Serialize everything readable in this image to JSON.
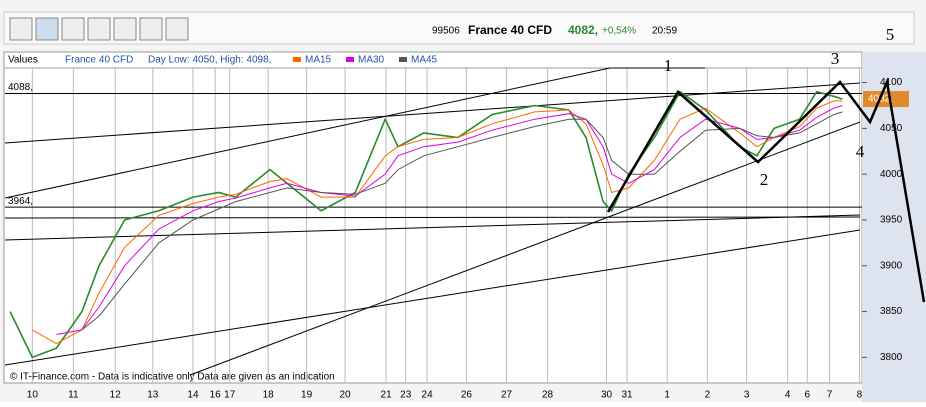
{
  "toolbar": {
    "quote_id": "99506",
    "instrument": "France 40 CFD",
    "last": "4082,",
    "change": "+0,54%",
    "time": "20:59"
  },
  "legend": {
    "heading": "Values",
    "instrument": "France 40 CFD",
    "day_range": "Day Low: 4050, High: 4098,"
  },
  "footer": "© IT-Finance.com - Data is indicative only Data are given as an indication",
  "chart_data": {
    "type": "line",
    "x": [
      0.6,
      3.2,
      6,
      9,
      11,
      14,
      18,
      22,
      25,
      27,
      31,
      33,
      37,
      41,
      44.5,
      46,
      49,
      53,
      57,
      62,
      66,
      68,
      70,
      71,
      73,
      76,
      79,
      82,
      86,
      88,
      90,
      93,
      95,
      97,
      98
    ],
    "series": [
      {
        "name": "France 40 CFD",
        "color": "#2a8a2a",
        "values": [
          3850,
          3800,
          3810,
          3850,
          3900,
          3950,
          3960,
          3975,
          3980,
          3975,
          4005,
          3990,
          3960,
          3980,
          4060,
          4030,
          4045,
          4040,
          4065,
          4075,
          4070,
          4040,
          3970,
          3960,
          4000,
          4040,
          4090,
          4070,
          4030,
          4020,
          4050,
          4060,
          4090,
          4085,
          4082
        ]
      },
      {
        "name": "MA15",
        "color": "#ff6600",
        "values": [
          null,
          3830,
          3815,
          3830,
          3870,
          3920,
          3955,
          3968,
          3975,
          3978,
          3992,
          3995,
          3975,
          3975,
          4020,
          4030,
          4038,
          4040,
          4055,
          4068,
          4070,
          4055,
          4010,
          3980,
          3985,
          4015,
          4060,
          4072,
          4045,
          4030,
          4040,
          4052,
          4072,
          4080,
          4080
        ]
      },
      {
        "name": "MA30",
        "color": "#e000e0",
        "values": [
          null,
          null,
          3825,
          3830,
          3855,
          3900,
          3940,
          3960,
          3970,
          3974,
          3985,
          3990,
          3980,
          3976,
          4000,
          4020,
          4030,
          4035,
          4048,
          4060,
          4066,
          4060,
          4030,
          4000,
          3990,
          4005,
          4040,
          4060,
          4050,
          4038,
          4040,
          4048,
          4062,
          4072,
          4075
        ]
      },
      {
        "name": "MA45",
        "color": "#555555",
        "values": [
          null,
          null,
          null,
          3830,
          3845,
          3880,
          3925,
          3950,
          3962,
          3970,
          3980,
          3985,
          3980,
          3978,
          3990,
          4005,
          4020,
          4030,
          4040,
          4052,
          4060,
          4060,
          4040,
          4015,
          4000,
          4000,
          4025,
          4048,
          4050,
          4042,
          4040,
          4045,
          4055,
          4065,
          4068
        ]
      }
    ],
    "xlim": [
      0,
      100.3
    ],
    "xticks": [
      {
        "value": 3.2,
        "label": "10"
      },
      {
        "value": 8,
        "label": "11"
      },
      {
        "value": 12.9,
        "label": "12"
      },
      {
        "value": 17.3,
        "label": "13"
      },
      {
        "value": 22,
        "label": "14"
      },
      {
        "value": 24.6,
        "label": "16"
      },
      {
        "value": 26.3,
        "label": "17"
      },
      {
        "value": 30.8,
        "label": "18"
      },
      {
        "value": 35.3,
        "label": "19"
      },
      {
        "value": 39.8,
        "label": "20"
      },
      {
        "value": 44.6,
        "label": "21"
      },
      {
        "value": 46.9,
        "label": "23"
      },
      {
        "value": 49.4,
        "label": "24"
      },
      {
        "value": 54,
        "label": "26"
      },
      {
        "value": 58.7,
        "label": "27"
      },
      {
        "value": 63.5,
        "label": "28"
      },
      {
        "value": 70.4,
        "label": "30"
      },
      {
        "value": 72.8,
        "label": "31"
      },
      {
        "value": 77.5,
        "label": "1"
      },
      {
        "value": 82.2,
        "label": "2"
      },
      {
        "value": 86.8,
        "label": "3"
      },
      {
        "value": 91.6,
        "label": "4"
      },
      {
        "value": 93.9,
        "label": "6"
      },
      {
        "value": 96.5,
        "label": "7"
      },
      {
        "value": 100,
        "label": "8"
      }
    ],
    "ylim": [
      3772,
      4117
    ],
    "yticks": [
      3800,
      3850,
      3900,
      3950,
      4000,
      4050,
      4100
    ],
    "levels": [
      {
        "value": 4088,
        "label": "4088,"
      },
      {
        "value": 3964,
        "label": "3964,"
      }
    ],
    "last_price": {
      "value": 4082,
      "label": "4082,"
    },
    "annotations": [
      "1",
      "2",
      "3",
      "4",
      "5"
    ],
    "grid": true
  }
}
